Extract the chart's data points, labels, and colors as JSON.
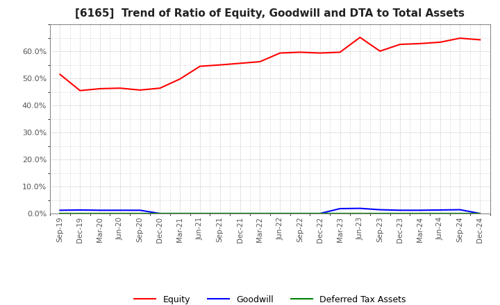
{
  "title": "[6165]  Trend of Ratio of Equity, Goodwill and DTA to Total Assets",
  "x_labels": [
    "Sep-19",
    "Dec-19",
    "Mar-20",
    "Jun-20",
    "Sep-20",
    "Dec-20",
    "Mar-21",
    "Jun-21",
    "Sep-21",
    "Dec-21",
    "Mar-22",
    "Jun-22",
    "Sep-22",
    "Dec-22",
    "Mar-23",
    "Jun-23",
    "Sep-23",
    "Dec-23",
    "Mar-24",
    "Jun-24",
    "Sep-24",
    "Dec-24"
  ],
  "equity": [
    0.515,
    0.455,
    0.462,
    0.464,
    0.457,
    0.464,
    0.498,
    0.545,
    0.55,
    0.556,
    0.562,
    0.594,
    0.597,
    0.594,
    0.597,
    0.652,
    0.601,
    0.626,
    0.629,
    0.634,
    0.649,
    0.643
  ],
  "goodwill": [
    0.012,
    0.013,
    0.012,
    0.012,
    0.012,
    0.0,
    0.0,
    0.0,
    0.0,
    0.0,
    0.0,
    0.0,
    0.0,
    0.0,
    0.018,
    0.019,
    0.014,
    0.012,
    0.012,
    0.013,
    0.014,
    0.0
  ],
  "dta": [
    0.0,
    0.0,
    0.0,
    0.0,
    0.0,
    0.0,
    0.0,
    0.0,
    0.0,
    0.0,
    0.0,
    0.0,
    0.0,
    0.0,
    0.0,
    0.0,
    0.0,
    0.0,
    0.0,
    0.0,
    0.0,
    0.0
  ],
  "equity_color": "#ff0000",
  "goodwill_color": "#0000ff",
  "dta_color": "#008000",
  "ylim": [
    0.0,
    0.7
  ],
  "yticks": [
    0.0,
    0.1,
    0.2,
    0.3,
    0.4,
    0.5,
    0.6
  ],
  "background_color": "#ffffff",
  "grid_color": "#aaaaaa",
  "title_fontsize": 11,
  "tick_label_color": "#555555"
}
